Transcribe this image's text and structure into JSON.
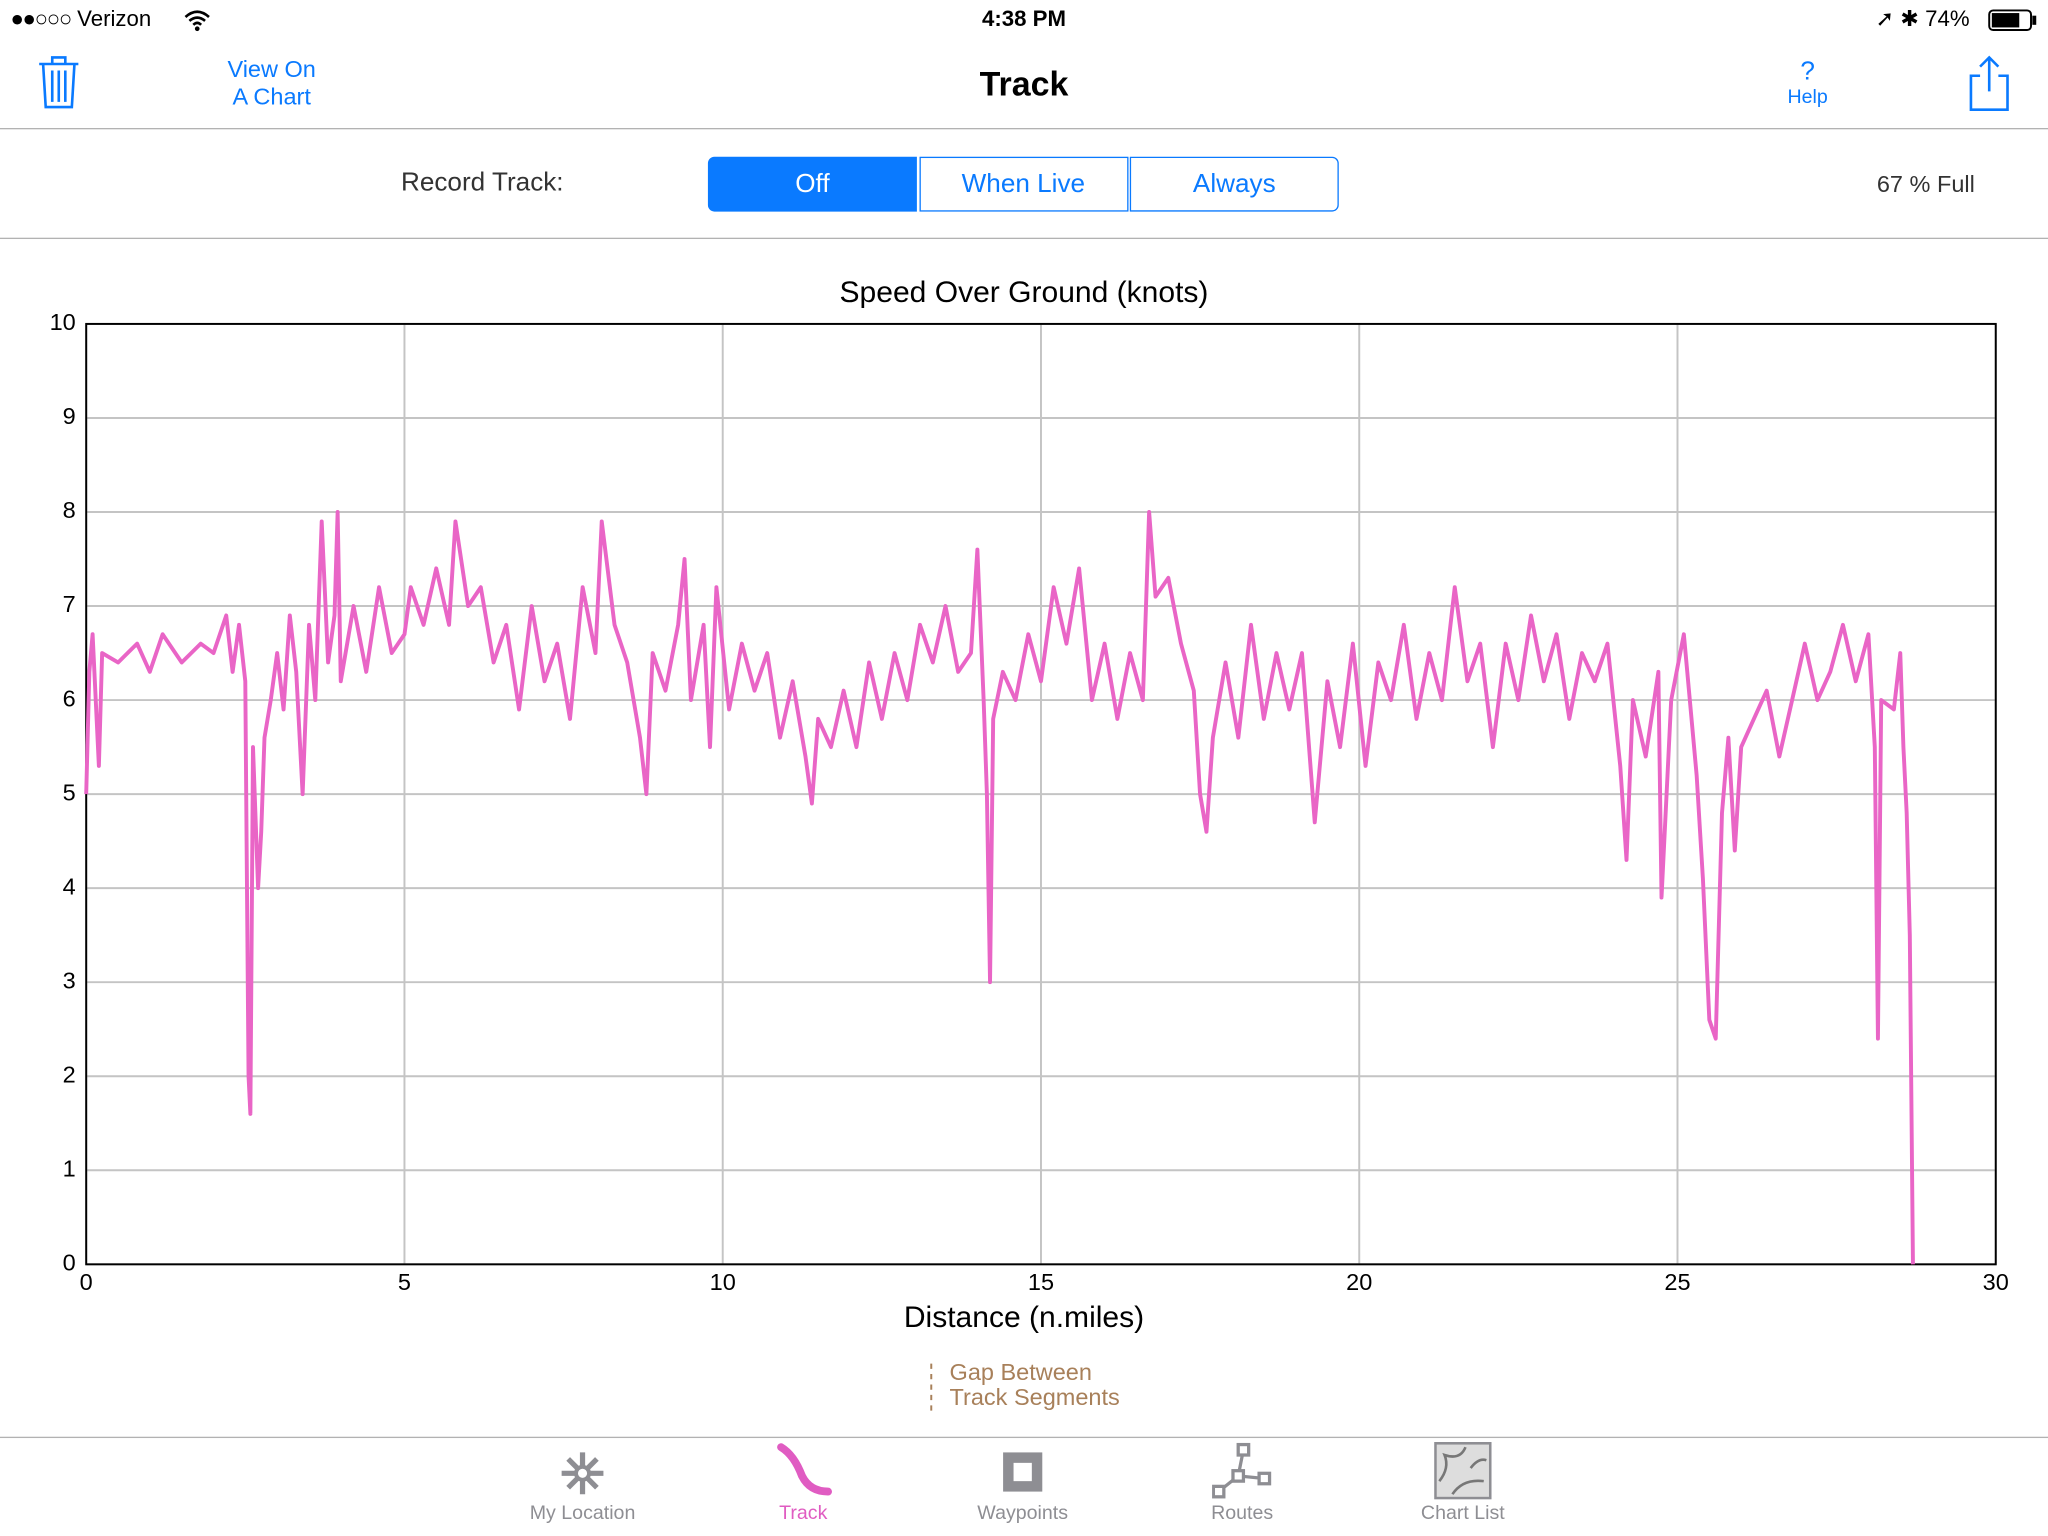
{
  "status_bar": {
    "carrier": "Verizon",
    "time": "4:38 PM",
    "battery": "74%"
  },
  "nav_bar": {
    "left_button_lines": [
      "View On",
      "A Chart"
    ],
    "title": "Track",
    "help_icon": "?",
    "help_label": "Help"
  },
  "record_track": {
    "label": "Record Track:",
    "options": [
      "Off",
      "When Live",
      "Always"
    ],
    "selected": 0,
    "storage": "67 % Full"
  },
  "chart_data": {
    "type": "line",
    "title": "Speed Over Ground (knots)",
    "x_label": "Distance (n.miles)",
    "xlim": [
      0,
      30
    ],
    "xticks": [
      0,
      5,
      10,
      15,
      20,
      25,
      30
    ],
    "ylim": [
      0,
      10
    ],
    "yticks": [
      0,
      1,
      2,
      3,
      4,
      5,
      6,
      7,
      8,
      9,
      10
    ],
    "grid": true,
    "x": [
      0,
      0.05,
      0.1,
      0.2,
      0.25,
      0.5,
      0.8,
      1.0,
      1.2,
      1.5,
      1.8,
      2.0,
      2.2,
      2.3,
      2.4,
      2.5,
      2.52,
      2.55,
      2.58,
      2.62,
      2.7,
      2.75,
      2.8,
      2.9,
      3.0,
      3.1,
      3.2,
      3.3,
      3.4,
      3.5,
      3.6,
      3.7,
      3.8,
      3.9,
      3.95,
      4.0,
      4.2,
      4.4,
      4.6,
      4.8,
      5.0,
      5.1,
      5.3,
      5.5,
      5.7,
      5.8,
      6.0,
      6.2,
      6.4,
      6.6,
      6.8,
      7.0,
      7.2,
      7.4,
      7.6,
      7.8,
      8.0,
      8.1,
      8.3,
      8.5,
      8.7,
      8.8,
      8.9,
      9.1,
      9.3,
      9.4,
      9.5,
      9.7,
      9.8,
      9.9,
      10.1,
      10.3,
      10.5,
      10.7,
      10.9,
      11.1,
      11.3,
      11.4,
      11.5,
      11.7,
      11.9,
      12.1,
      12.3,
      12.5,
      12.7,
      12.9,
      13.1,
      13.3,
      13.5,
      13.7,
      13.9,
      14.0,
      14.1,
      14.15,
      14.2,
      14.25,
      14.4,
      14.6,
      14.8,
      15.0,
      15.2,
      15.4,
      15.6,
      15.8,
      16.0,
      16.2,
      16.4,
      16.6,
      16.7,
      16.8,
      17.0,
      17.2,
      17.4,
      17.5,
      17.6,
      17.7,
      17.9,
      18.1,
      18.3,
      18.5,
      18.7,
      18.9,
      19.1,
      19.3,
      19.5,
      19.7,
      19.9,
      20.1,
      20.3,
      20.5,
      20.7,
      20.9,
      21.1,
      21.3,
      21.5,
      21.7,
      21.9,
      22.1,
      22.3,
      22.5,
      22.7,
      22.9,
      23.1,
      23.3,
      23.5,
      23.7,
      23.9,
      24.1,
      24.2,
      24.3,
      24.5,
      24.7,
      24.75,
      24.9,
      25.1,
      25.3,
      25.4,
      25.5,
      25.6,
      25.7,
      25.8,
      25.9,
      26.0,
      26.2,
      26.4,
      26.6,
      26.8,
      27.0,
      27.2,
      27.4,
      27.6,
      27.8,
      28.0,
      28.1,
      28.15,
      28.2,
      28.4,
      28.5,
      28.55,
      28.6,
      28.65,
      28.7
    ],
    "series": [
      {
        "color": "#e965c6",
        "values": [
          5.0,
          6.3,
          6.7,
          5.3,
          6.5,
          6.4,
          6.6,
          6.3,
          6.7,
          6.4,
          6.6,
          6.5,
          6.9,
          6.3,
          6.8,
          6.2,
          4.5,
          2.0,
          1.6,
          5.5,
          4.0,
          4.6,
          5.6,
          6.0,
          6.5,
          5.9,
          6.9,
          6.3,
          5.0,
          6.8,
          6.0,
          7.9,
          6.4,
          6.9,
          8.0,
          6.2,
          7.0,
          6.3,
          7.2,
          6.5,
          6.7,
          7.2,
          6.8,
          7.4,
          6.8,
          7.9,
          7.0,
          7.2,
          6.4,
          6.8,
          5.9,
          7.0,
          6.2,
          6.6,
          5.8,
          7.2,
          6.5,
          7.9,
          6.8,
          6.4,
          5.6,
          5.0,
          6.5,
          6.1,
          6.8,
          7.5,
          6.0,
          6.8,
          5.5,
          7.2,
          5.9,
          6.6,
          6.1,
          6.5,
          5.6,
          6.2,
          5.4,
          4.9,
          5.8,
          5.5,
          6.1,
          5.5,
          6.4,
          5.8,
          6.5,
          6.0,
          6.8,
          6.4,
          7.0,
          6.3,
          6.5,
          7.6,
          6.0,
          5.0,
          3.0,
          5.8,
          6.3,
          6.0,
          6.7,
          6.2,
          7.2,
          6.6,
          7.4,
          6.0,
          6.6,
          5.8,
          6.5,
          6.0,
          8.0,
          7.1,
          7.3,
          6.6,
          6.1,
          5.0,
          4.6,
          5.6,
          6.4,
          5.6,
          6.8,
          5.8,
          6.5,
          5.9,
          6.5,
          4.7,
          6.2,
          5.5,
          6.6,
          5.3,
          6.4,
          6.0,
          6.8,
          5.8,
          6.5,
          6.0,
          7.2,
          6.2,
          6.6,
          5.5,
          6.6,
          6.0,
          6.9,
          6.2,
          6.7,
          5.8,
          6.5,
          6.2,
          6.6,
          5.3,
          4.3,
          6.0,
          5.4,
          6.3,
          3.9,
          6.0,
          6.7,
          5.2,
          4.1,
          2.6,
          2.4,
          4.8,
          5.6,
          4.4,
          5.5,
          5.8,
          6.1,
          5.4,
          6.0,
          6.6,
          6.0,
          6.3,
          6.8,
          6.2,
          6.7,
          5.5,
          2.4,
          6.0,
          5.9,
          6.5,
          5.5,
          4.8,
          3.5,
          0
        ]
      }
    ],
    "gap_legend": {
      "lines": [
        "Gap Between",
        "Track Segments"
      ],
      "color": "#a8805a"
    }
  },
  "tab_bar": {
    "items": [
      "My Location",
      "Track",
      "Waypoints",
      "Routes",
      "Chart List"
    ],
    "selected": 1
  }
}
